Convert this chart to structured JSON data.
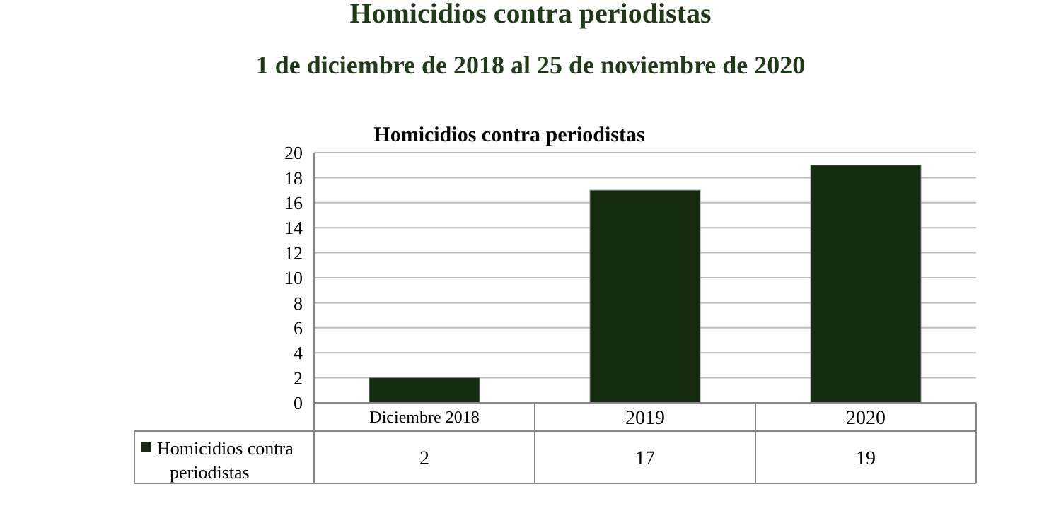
{
  "chart_data": {
    "type": "bar",
    "title": "Homicidios contra periodistas",
    "subtitle": "1 de diciembre de 2018 al 25 de noviembre de 2020",
    "annotations": [
      "Homicidios contra periodistas"
    ],
    "categories": [
      "Diciembre 2018",
      "2019",
      "2020"
    ],
    "series": [
      {
        "name": "Homicidios contra periodistas",
        "color": "#152a0e",
        "values": [
          2,
          17,
          19
        ]
      }
    ],
    "ylim": [
      0,
      20
    ],
    "yticks": [
      0,
      2,
      4,
      6,
      8,
      10,
      12,
      14,
      16,
      18,
      20
    ],
    "grid": "y",
    "legend": "bottom",
    "data_labels": true
  }
}
